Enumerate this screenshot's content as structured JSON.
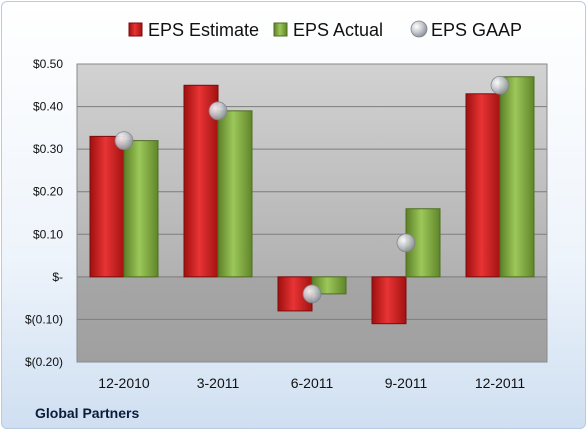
{
  "company": "Global Partners",
  "chart_data": {
    "type": "bar",
    "categories": [
      "12-2010",
      "3-2011",
      "6-2011",
      "9-2011",
      "12-2011"
    ],
    "series": [
      {
        "name": "EPS Estimate",
        "type": "bar",
        "color": "#cc1f1f",
        "values": [
          0.33,
          0.45,
          -0.08,
          -0.11,
          0.43
        ]
      },
      {
        "name": "EPS Actual",
        "type": "bar",
        "color": "#7aa53a",
        "values": [
          0.32,
          0.39,
          -0.04,
          0.16,
          0.47
        ]
      },
      {
        "name": "EPS GAAP",
        "type": "scatter",
        "color": "#b8bcc4",
        "values": [
          0.32,
          0.39,
          -0.04,
          0.08,
          0.45
        ]
      }
    ],
    "ylim": [
      -0.2,
      0.5
    ],
    "yticks": [
      0.5,
      0.4,
      0.3,
      0.2,
      0.1,
      0,
      -0.1,
      -0.2
    ],
    "ytick_labels": [
      "$0.50",
      "$0.40",
      "$0.30",
      "$0.20",
      "$0.10",
      "$-",
      "$(0.10)",
      "$(0.20)"
    ],
    "grid": true,
    "legend_position": "top"
  }
}
